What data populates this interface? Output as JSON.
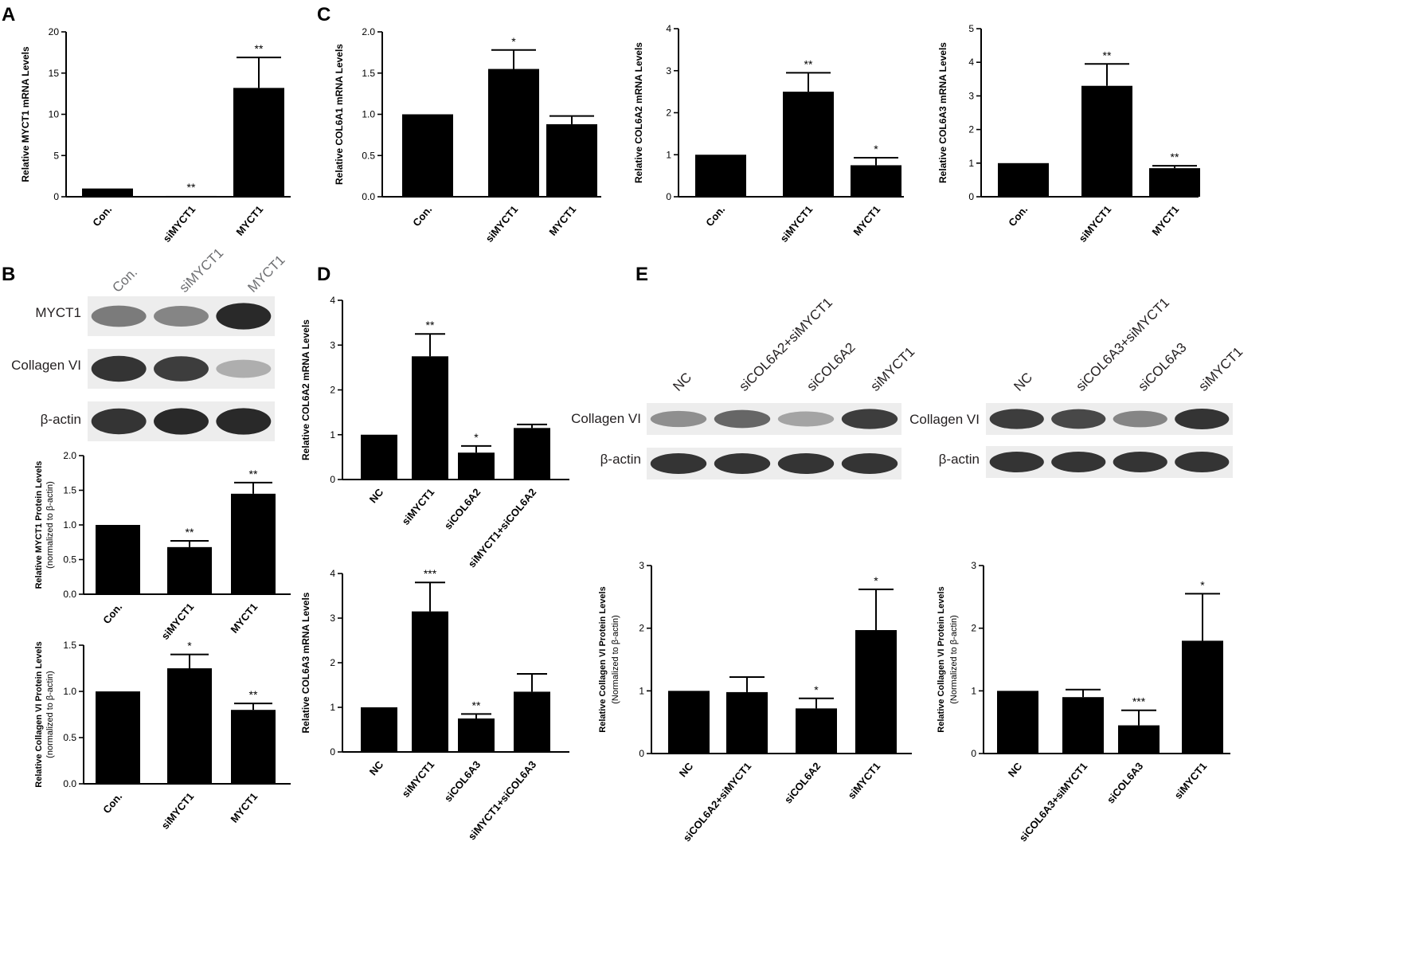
{
  "panel_labels": [
    "A",
    "B",
    "C",
    "D",
    "E"
  ],
  "chart_data": [
    {
      "id": "A",
      "type": "bar",
      "categories": [
        "Con.",
        "siMYCT1",
        "MYCT1"
      ],
      "values": [
        1,
        0.1,
        13.2
      ],
      "errors": [
        0,
        0,
        3.7
      ],
      "significance": [
        "",
        "**",
        "**"
      ],
      "ylabel": "Relative MYCT1 mRNA Levels",
      "ylim": [
        0,
        20
      ],
      "yticks": [
        0,
        5,
        10,
        15,
        20
      ]
    },
    {
      "id": "C1",
      "type": "bar",
      "categories": [
        "Con.",
        "siMYCT1",
        "MYCT1"
      ],
      "values": [
        1.0,
        1.55,
        0.88
      ],
      "errors": [
        0,
        0.23,
        0.1
      ],
      "significance": [
        "",
        "*",
        ""
      ],
      "ylabel": "Relative COL6A1 mRNA Levels",
      "ylim": [
        0,
        2.0
      ],
      "yticks": [
        "0.0",
        "0.5",
        "1.0",
        "1.5",
        "2.0"
      ]
    },
    {
      "id": "C2",
      "type": "bar",
      "categories": [
        "Con.",
        "siMYCT1",
        "MYCT1"
      ],
      "values": [
        1.0,
        2.5,
        0.75
      ],
      "errors": [
        0,
        0.45,
        0.18
      ],
      "significance": [
        "",
        "**",
        "*"
      ],
      "ylabel": "Relative COL6A2 mRNA Levels",
      "ylim": [
        0,
        4
      ],
      "yticks": [
        "0",
        "1",
        "2",
        "3",
        "4"
      ]
    },
    {
      "id": "C3",
      "type": "bar",
      "categories": [
        "Con.",
        "siMYCT1",
        "MYCT1"
      ],
      "values": [
        1.0,
        3.3,
        0.85
      ],
      "errors": [
        0,
        0.65,
        0.07
      ],
      "significance": [
        "",
        "**",
        "**"
      ],
      "ylabel": "Relative COL6A3 mRNA Levels",
      "ylim": [
        0,
        5
      ],
      "yticks": [
        "0",
        "1",
        "2",
        "3",
        "4",
        "5"
      ]
    },
    {
      "id": "B1",
      "type": "bar",
      "categories": [
        "Con.",
        "siMYCT1",
        "MYCT1"
      ],
      "values": [
        1.0,
        0.68,
        1.45
      ],
      "errors": [
        0,
        0.09,
        0.16
      ],
      "significance": [
        "",
        "**",
        "**"
      ],
      "ylabel": "Relative MYCT1 Protein Levels",
      "ylabel2": "(normalized to β-actin)",
      "ylim": [
        0,
        2.0
      ],
      "yticks": [
        "0.0",
        "0.5",
        "1.0",
        "1.5",
        "2.0"
      ]
    },
    {
      "id": "B2",
      "type": "bar",
      "categories": [
        "Con.",
        "siMYCT1",
        "MYCT1"
      ],
      "values": [
        1.0,
        1.25,
        0.8
      ],
      "errors": [
        0,
        0.15,
        0.07
      ],
      "significance": [
        "",
        "*",
        "**"
      ],
      "ylabel": "Relative Collagen VI Protein Levels",
      "ylabel2": "(normalized to β-actin)",
      "ylim": [
        0,
        1.5
      ],
      "yticks": [
        "0.0",
        "0.5",
        "1.0",
        "1.5"
      ]
    },
    {
      "id": "D1",
      "type": "bar",
      "categories": [
        "NC",
        "siMYCT1",
        "siCOL6A2",
        "siMYCT1+siCOL6A2"
      ],
      "values": [
        1.0,
        2.75,
        0.6,
        1.15
      ],
      "errors": [
        0,
        0.5,
        0.15,
        0.08
      ],
      "significance": [
        "",
        "**",
        "*",
        ""
      ],
      "ylabel": "Relative COL6A2 mRNA Levels",
      "ylim": [
        0,
        4
      ],
      "yticks": [
        "0",
        "1",
        "2",
        "3",
        "4"
      ]
    },
    {
      "id": "D2",
      "type": "bar",
      "categories": [
        "NC",
        "siMYCT1",
        "siCOL6A3",
        "siMYCT1+siCOL6A3"
      ],
      "values": [
        1.0,
        3.15,
        0.75,
        1.35
      ],
      "errors": [
        0,
        0.65,
        0.1,
        0.4
      ],
      "significance": [
        "",
        "***",
        "**",
        ""
      ],
      "ylabel": "Relative COL6A3 mRNA Levels",
      "ylim": [
        0,
        4
      ],
      "yticks": [
        "0",
        "1",
        "2",
        "3",
        "4"
      ]
    },
    {
      "id": "E1",
      "type": "bar",
      "categories": [
        "NC",
        "siCOL6A2+siMYCT1",
        "siCOL6A2",
        "siMYCT1"
      ],
      "values": [
        1.0,
        0.98,
        0.72,
        1.97
      ],
      "errors": [
        0,
        0.24,
        0.16,
        0.65
      ],
      "significance": [
        "",
        "",
        "*",
        "*"
      ],
      "ylabel": "Relative Collagen VI Protein Levels",
      "ylabel2": "(Normalized to β-actin)",
      "ylim": [
        0,
        3
      ],
      "yticks": [
        "0",
        "1",
        "2",
        "3"
      ]
    },
    {
      "id": "E2",
      "type": "bar",
      "categories": [
        "NC",
        "siCOL6A3+siMYCT1",
        "siCOL6A3",
        "siMYCT1"
      ],
      "values": [
        1.0,
        0.9,
        0.45,
        1.8
      ],
      "errors": [
        0,
        0.12,
        0.24,
        0.75
      ],
      "significance": [
        "",
        "",
        "***",
        "*"
      ],
      "ylabel": "Relative Collagen VI Protein Levels",
      "ylabel2": "(Normalized to β-actin)",
      "ylim": [
        0,
        3
      ],
      "yticks": [
        "0",
        "1",
        "2",
        "3"
      ]
    }
  ],
  "blots": {
    "B": {
      "lanes": [
        "Con.",
        "siMYCT1",
        "MYCT1"
      ],
      "rows": [
        {
          "label": "MYCT1",
          "intensity": [
            0.55,
            0.5,
            0.95
          ]
        },
        {
          "label": "Collagen VI",
          "intensity": [
            0.9,
            0.85,
            0.3
          ]
        },
        {
          "label": "β-actin",
          "intensity": [
            0.9,
            0.95,
            0.95
          ]
        }
      ]
    },
    "E1": {
      "lanes": [
        "NC",
        "siCOL6A2+siMYCT1",
        "siCOL6A2",
        "siMYCT1"
      ],
      "rows": [
        {
          "label": "Collagen VI",
          "intensity": [
            0.45,
            0.65,
            0.35,
            0.85
          ]
        },
        {
          "label": "β-actin",
          "intensity": [
            0.9,
            0.9,
            0.9,
            0.9
          ]
        }
      ]
    },
    "E2": {
      "lanes": [
        "NC",
        "siCOL6A3+siMYCT1",
        "siCOL6A3",
        "siMYCT1"
      ],
      "rows": [
        {
          "label": "Collagen VI",
          "intensity": [
            0.85,
            0.8,
            0.5,
            0.9
          ]
        },
        {
          "label": "β-actin",
          "intensity": [
            0.9,
            0.9,
            0.9,
            0.9
          ]
        }
      ]
    }
  },
  "colors": {
    "bar": "#000000",
    "axis": "#000000",
    "text": "#231f20"
  }
}
